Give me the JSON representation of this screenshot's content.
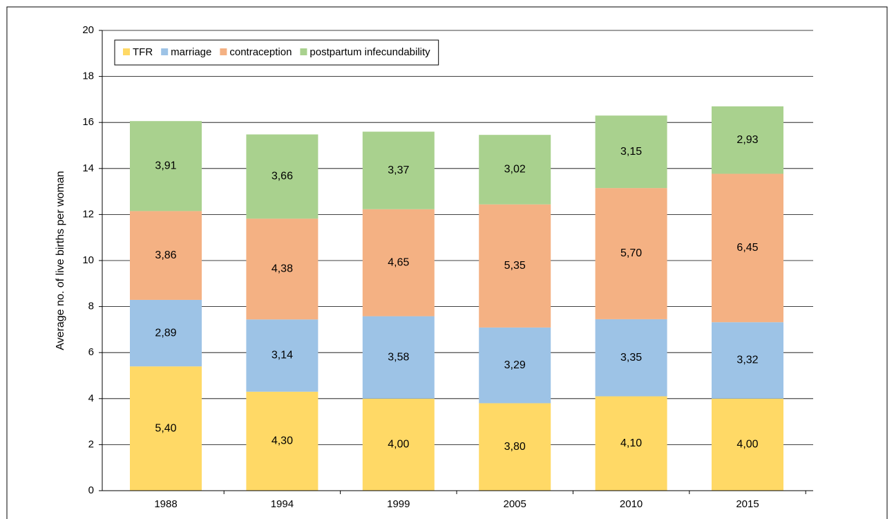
{
  "chart_data": {
    "type": "stacked-bar",
    "y_label": "Average no. of live births per woman",
    "categories": [
      "1988",
      "1994",
      "1999",
      "2005",
      "2010",
      "2015"
    ],
    "series": [
      {
        "name": "TFR",
        "color": "#ffd966",
        "values": [
          5.4,
          4.3,
          4.0,
          3.8,
          4.1,
          4.0
        ],
        "value_labels": [
          "5,40",
          "4,30",
          "4,00",
          "3,80",
          "4,10",
          "4,00"
        ]
      },
      {
        "name": "marriage",
        "color": "#9dc3e6",
        "values": [
          2.89,
          3.14,
          3.58,
          3.29,
          3.35,
          3.32
        ],
        "value_labels": [
          "2,89",
          "3,14",
          "3,58",
          "3,29",
          "3,35",
          "3,32"
        ]
      },
      {
        "name": "contraception",
        "color": "#f4b183",
        "values": [
          3.86,
          4.38,
          4.65,
          5.35,
          5.7,
          6.45
        ],
        "value_labels": [
          "3,86",
          "4,38",
          "4,65",
          "5,35",
          "5,70",
          "6,45"
        ]
      },
      {
        "name": "postpartum infecundability",
        "color": "#a9d18e",
        "values": [
          3.91,
          3.66,
          3.37,
          3.02,
          3.15,
          2.93
        ],
        "value_labels": [
          "3,91",
          "3,66",
          "3,37",
          "3,02",
          "3,15",
          "2,93"
        ]
      }
    ],
    "ylim": [
      0,
      20
    ],
    "yticks": [
      0,
      2,
      4,
      6,
      8,
      10,
      12,
      14,
      16,
      18,
      20
    ],
    "grid": true,
    "legend": "top-left"
  }
}
